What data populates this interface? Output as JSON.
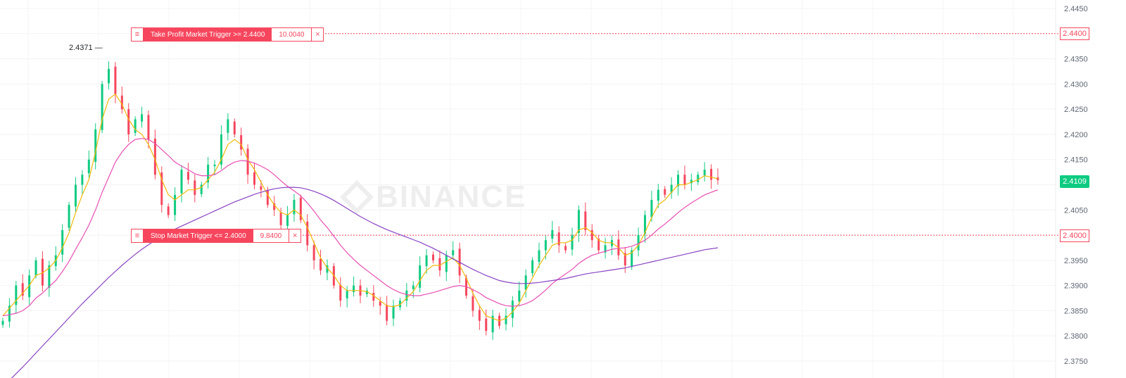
{
  "watermark": {
    "text": "BINANCE",
    "icon": "binance-logo-icon"
  },
  "orders": {
    "take_profit": {
      "label": "Take Profit Market Trigger >= 2.4400",
      "quantity": "10.0040",
      "price_tag": "2.4400",
      "price": 2.44,
      "close_icon": "×",
      "handle_icon": "≡"
    },
    "stop": {
      "label": "Stop Market Trigger <= 2.4000",
      "quantity": "9.8400",
      "price_tag": "2.4000",
      "price": 2.4,
      "close_icon": "×",
      "handle_icon": "≡"
    }
  },
  "current_price": {
    "text": "2.4109",
    "value": 2.4109
  },
  "peak_label": {
    "text": "2.4371",
    "value": 2.4371
  },
  "colors": {
    "up": "#0ecb81",
    "down": "#f6465d",
    "ma_short": "#f0b90b",
    "ma_mid": "#e84fb4",
    "ma_long": "#8a43c4",
    "trigger_line": "#f6465d"
  },
  "chart_data": {
    "type": "candlestick",
    "y_axis": {
      "ticks": [
        "2.4450",
        "2.4400",
        "2.4350",
        "2.4300",
        "2.4250",
        "2.4200",
        "2.4150",
        "2.4100",
        "2.4050",
        "2.4000",
        "2.3950",
        "2.3900",
        "2.3850",
        "2.3800",
        "2.3750"
      ],
      "ylim": [
        2.3745,
        2.4455
      ],
      "position": "right"
    },
    "grid": true,
    "candles_close": [
      2.383,
      2.386,
      2.39,
      2.388,
      2.392,
      2.395,
      2.39,
      2.394,
      2.396,
      2.401,
      2.406,
      2.41,
      2.412,
      2.415,
      2.421,
      2.43,
      2.433,
      2.428,
      2.425,
      2.42,
      2.423,
      2.424,
      2.419,
      2.412,
      2.406,
      2.404,
      2.408,
      2.413,
      2.411,
      2.408,
      2.41,
      2.414,
      2.414,
      2.42,
      2.423,
      2.42,
      2.417,
      2.412,
      2.41,
      2.409,
      2.406,
      2.405,
      2.402,
      2.404,
      2.407,
      2.403,
      2.398,
      2.395,
      2.393,
      2.394,
      2.39,
      2.387,
      2.389,
      2.39,
      2.388,
      2.389,
      2.387,
      2.386,
      2.383,
      2.386,
      2.387,
      2.389,
      2.39,
      2.394,
      2.396,
      2.395,
      2.393,
      2.396,
      2.397,
      2.392,
      2.388,
      2.385,
      2.383,
      2.381,
      2.384,
      2.382,
      2.384,
      2.387,
      2.389,
      2.392,
      2.395,
      2.397,
      2.399,
      2.401,
      2.398,
      2.397,
      2.4,
      2.405,
      2.401,
      2.399,
      2.397,
      2.398,
      2.399,
      2.396,
      2.394,
      2.397,
      2.4,
      2.404,
      2.407,
      2.409,
      2.408,
      2.41,
      2.412,
      2.41,
      2.411,
      2.412,
      2.413,
      2.411,
      2.4109
    ],
    "ma_short": [
      2.384,
      2.3855,
      2.387,
      2.3885,
      2.39,
      2.392,
      2.3925,
      2.3935,
      2.395,
      2.3975,
      2.4005,
      2.4045,
      2.408,
      2.411,
      2.4165,
      2.423,
      2.427,
      2.428,
      2.426,
      2.423,
      2.421,
      2.42,
      2.418,
      2.415,
      2.411,
      2.408,
      2.407,
      2.408,
      2.409,
      2.409,
      2.4095,
      2.411,
      2.4125,
      2.415,
      2.418,
      2.419,
      2.418,
      2.415,
      2.413,
      2.4105,
      2.408,
      2.406,
      2.4045,
      2.404,
      2.405,
      2.404,
      2.4015,
      2.3985,
      2.3955,
      2.3935,
      2.392,
      2.39,
      2.389,
      2.389,
      2.389,
      2.3888,
      2.388,
      2.387,
      2.386,
      2.3858,
      2.3862,
      2.3875,
      2.3888,
      2.391,
      2.393,
      2.394,
      2.394,
      2.3948,
      2.3955,
      2.394,
      2.3915,
      2.3885,
      2.386,
      2.384,
      2.3835,
      2.383,
      2.3835,
      2.3848,
      2.3865,
      2.389,
      2.3915,
      2.394,
      2.396,
      2.398,
      2.3985,
      2.3985,
      2.399,
      2.401,
      2.4015,
      2.4005,
      2.399,
      2.3985,
      2.3985,
      2.3975,
      2.396,
      2.3965,
      2.398,
      2.4005,
      2.4035,
      2.406,
      2.407,
      2.4085,
      2.41,
      2.41,
      2.4105,
      2.411,
      2.4118,
      2.4115,
      2.4112
    ],
    "ma_mid": [
      2.384,
      2.3842,
      2.3845,
      2.385,
      2.386,
      2.3875,
      2.3885,
      2.3898,
      2.391,
      2.3928,
      2.3948,
      2.3972,
      2.3995,
      2.402,
      2.405,
      2.4085,
      2.4115,
      2.4145,
      2.4165,
      2.418,
      2.419,
      2.4192,
      2.419,
      2.4182,
      2.417,
      2.4158,
      2.4145,
      2.4137,
      2.413,
      2.4122,
      2.4118,
      2.4118,
      2.412,
      2.4128,
      2.4138,
      2.4145,
      2.4148,
      2.4147,
      2.4143,
      2.4137,
      2.413,
      2.412,
      2.4108,
      2.4097,
      2.4088,
      2.4078,
      2.4064,
      2.4048,
      2.403,
      2.4015,
      2.3998,
      2.398,
      2.3965,
      2.3952,
      2.394,
      2.393,
      2.392,
      2.391,
      2.39,
      2.3892,
      2.3886,
      2.3882,
      2.388,
      2.388,
      2.3883,
      2.3886,
      2.389,
      2.3894,
      2.3898,
      2.39,
      2.3898,
      2.3892,
      2.3885,
      2.3876,
      2.387,
      2.3864,
      2.386,
      2.3859,
      2.386,
      2.3864,
      2.387,
      2.388,
      2.3891,
      2.3904,
      2.3914,
      2.3923,
      2.3932,
      2.3944,
      2.3953,
      2.396,
      2.3964,
      2.3968,
      2.3972,
      2.3974,
      2.3975,
      2.3978,
      2.3983,
      2.399,
      2.4,
      2.4012,
      2.4022,
      2.4033,
      2.4045,
      2.4055,
      2.4064,
      2.4072,
      2.408,
      2.4085,
      2.409
    ],
    "ma_long": [
      2.37,
      2.3712,
      2.3725,
      2.3738,
      2.3752,
      2.3766,
      2.378,
      2.3794,
      2.3808,
      2.3822,
      2.3836,
      2.385,
      2.3864,
      2.3877,
      2.389,
      2.3903,
      2.3916,
      2.3928,
      2.394,
      2.3951,
      2.3962,
      2.3972,
      2.3981,
      2.399,
      2.3998,
      2.4005,
      2.4012,
      2.4018,
      2.4024,
      2.403,
      2.4036,
      2.4042,
      2.4048,
      2.4054,
      2.406,
      2.4066,
      2.4071,
      2.4076,
      2.4081,
      2.4085,
      2.4089,
      2.4092,
      2.4094,
      2.4095,
      2.4095,
      2.4094,
      2.4091,
      2.4087,
      2.4082,
      2.4076,
      2.4069,
      2.4061,
      2.4053,
      2.4045,
      2.4037,
      2.403,
      2.4023,
      2.4017,
      2.4011,
      2.4006,
      2.4001,
      2.3996,
      2.3991,
      2.3986,
      2.398,
      2.3974,
      2.3967,
      2.396,
      2.3953,
      2.3946,
      2.3939,
      2.3932,
      2.3926,
      2.392,
      2.3915,
      2.391,
      2.3907,
      2.3905,
      2.3904,
      2.3904,
      2.3905,
      2.3906,
      2.3908,
      2.391,
      2.3912,
      2.3914,
      2.3917,
      2.392,
      2.3923,
      2.3925,
      2.3927,
      2.3929,
      2.3931,
      2.3933,
      2.3935,
      2.3938,
      2.3941,
      2.3944,
      2.3947,
      2.395,
      2.3953,
      2.3956,
      2.3959,
      2.3962,
      2.3965,
      2.3968,
      2.3971,
      2.3973,
      2.3975
    ]
  }
}
